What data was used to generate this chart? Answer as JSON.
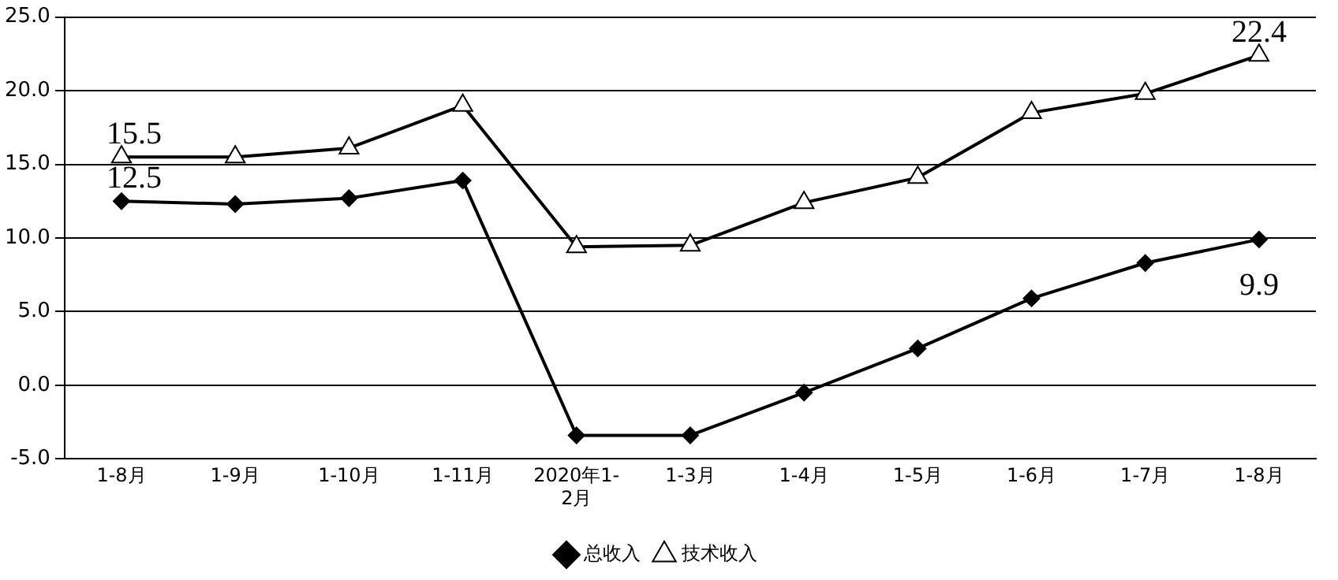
{
  "chart_data": {
    "type": "line",
    "categories": [
      "1-8月",
      "1-9月",
      "1-10月",
      "1-11月",
      "2020年1-2月",
      "1-3月",
      "1-4月",
      "1-5月",
      "1-6月",
      "1-7月",
      "1-8月"
    ],
    "series": [
      {
        "name": "总收入",
        "color": "#000000",
        "marker": "diamond",
        "values": [
          12.5,
          12.3,
          12.7,
          13.9,
          -3.4,
          -3.4,
          -0.5,
          2.5,
          5.9,
          8.3,
          9.9
        ],
        "value_labels": [
          "12.5",
          null,
          null,
          null,
          null,
          null,
          null,
          null,
          null,
          null,
          "9.9"
        ]
      },
      {
        "name": "技术收入",
        "color": "#000000",
        "marker": "triangle",
        "values": [
          15.5,
          15.5,
          16.1,
          19.0,
          9.4,
          9.5,
          12.4,
          14.1,
          18.5,
          19.8,
          22.4
        ],
        "value_labels": [
          "15.5",
          null,
          null,
          null,
          null,
          null,
          null,
          null,
          null,
          null,
          "22.4"
        ]
      }
    ],
    "ylim": [
      -5,
      25
    ],
    "yticks": [
      {
        "value": -5,
        "label": "-5.0"
      },
      {
        "value": 0,
        "label": "0.0"
      },
      {
        "value": 5,
        "label": "5.0"
      },
      {
        "value": 10,
        "label": "10.0"
      },
      {
        "value": 15,
        "label": "15.0"
      },
      {
        "value": 20,
        "label": "20.0"
      },
      {
        "value": 25,
        "label": "25.0"
      }
    ],
    "grid": "y",
    "legend": "bottom",
    "line_style": "solid"
  }
}
